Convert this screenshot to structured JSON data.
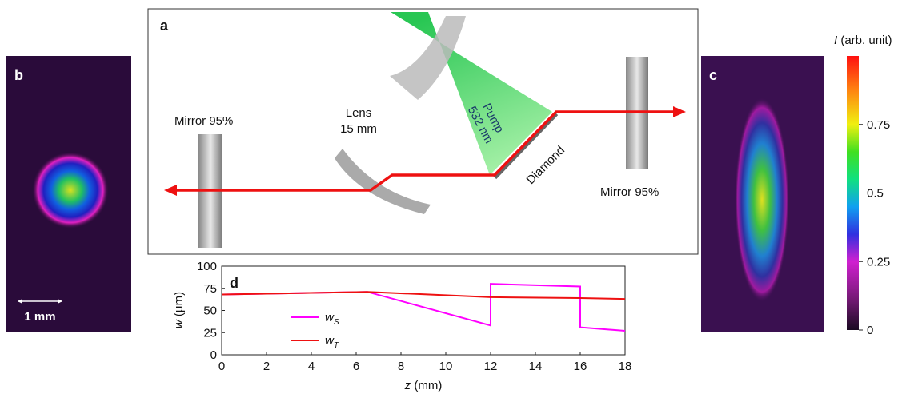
{
  "panels": {
    "a": "a",
    "b": "b",
    "c": "c",
    "d": "d"
  },
  "scale_bar": "1 mm",
  "diagram": {
    "mirror_left": "Mirror 95%",
    "lens_line1": "Lens",
    "lens_line2": "15 mm",
    "pump_line1": "Pump",
    "pump_line2": "532 nm",
    "diamond": "Diamond",
    "mirror_right": "Mirror 95%"
  },
  "colorbar": {
    "symbol": "I",
    "unit": "(arb. unit)",
    "lim": [
      0,
      1
    ],
    "ticks": [
      0,
      0.25,
      0.5,
      0.75
    ]
  },
  "chart_data": {
    "type": "line",
    "xlabel_symbol": "z",
    "xlabel_unit": "(mm)",
    "ylabel_symbol": "w",
    "ylabel_unit": "(μm)",
    "xlim": [
      0,
      18
    ],
    "xticks": [
      0,
      2,
      4,
      6,
      8,
      10,
      12,
      14,
      16,
      18
    ],
    "ylim": [
      0,
      100
    ],
    "yticks": [
      0,
      25,
      50,
      75,
      100
    ],
    "series": [
      {
        "name": "w",
        "subscript": "S",
        "color": "#ff00ff",
        "x": [
          0,
          6.5,
          12,
          12,
          16,
          16,
          18
        ],
        "values": [
          68,
          71,
          33,
          80,
          77,
          31,
          27
        ]
      },
      {
        "name": "w",
        "subscript": "T",
        "color": "#ee1111",
        "x": [
          0,
          6.5,
          12,
          16,
          18
        ],
        "values": [
          68,
          71,
          65,
          64,
          63
        ]
      }
    ]
  }
}
